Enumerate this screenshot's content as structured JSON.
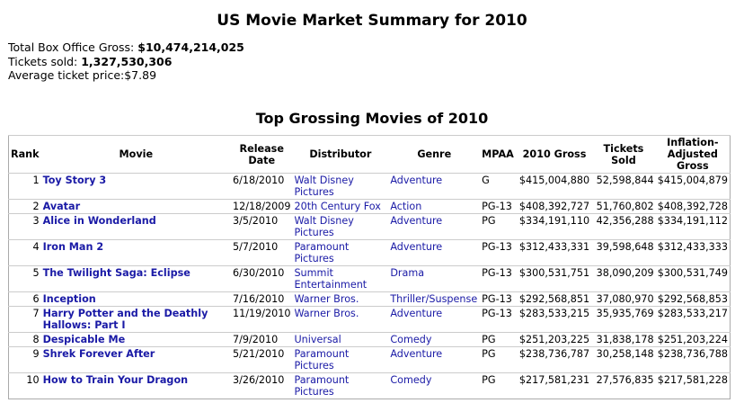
{
  "header": {
    "title": "US Movie Market Summary for 2010"
  },
  "summary": [
    {
      "label": "Total Box Office Gross:",
      "value": "$10,474,214,025"
    },
    {
      "label": "Tickets sold:",
      "value": "1,327,530,306"
    },
    {
      "label": "Average ticket price:",
      "value": "$7.89"
    }
  ],
  "table": {
    "title": "Top Grossing Movies of 2010",
    "columns": [
      "Rank",
      "Movie",
      "Release Date",
      "Distributor",
      "Genre",
      "MPAA",
      "2010 Gross",
      "Tickets Sold",
      "Inflation-Adjusted Gross"
    ],
    "rows": [
      [
        "1",
        "Toy Story 3",
        "6/18/2010",
        "Walt Disney Pictures",
        "Adventure",
        "G",
        "$415,004,880",
        "52,598,844",
        "$415,004,879"
      ],
      [
        "2",
        "Avatar",
        "12/18/2009",
        "20th Century Fox",
        "Action",
        "PG-13",
        "$408,392,727",
        "51,760,802",
        "$408,392,728"
      ],
      [
        "3",
        "Alice in Wonderland",
        "3/5/2010",
        "Walt Disney Pictures",
        "Adventure",
        "PG",
        "$334,191,110",
        "42,356,288",
        "$334,191,112"
      ],
      [
        "4",
        "Iron Man 2",
        "5/7/2010",
        "Paramount Pictures",
        "Adventure",
        "PG-13",
        "$312,433,331",
        "39,598,648",
        "$312,433,333"
      ],
      [
        "5",
        "The Twilight Saga: Eclipse",
        "6/30/2010",
        "Summit Entertainment",
        "Drama",
        "PG-13",
        "$300,531,751",
        "38,090,209",
        "$300,531,749"
      ],
      [
        "6",
        "Inception",
        "7/16/2010",
        "Warner Bros.",
        "Thriller/Suspense",
        "PG-13",
        "$292,568,851",
        "37,080,970",
        "$292,568,853"
      ],
      [
        "7",
        "Harry Potter and the Deathly Hallows: Part I",
        "11/19/2010",
        "Warner Bros.",
        "Adventure",
        "PG-13",
        "$283,533,215",
        "35,935,769",
        "$283,533,217"
      ],
      [
        "8",
        "Despicable Me",
        "7/9/2010",
        "Universal",
        "Comedy",
        "PG",
        "$251,203,225",
        "31,838,178",
        "$251,203,224"
      ],
      [
        "9",
        "Shrek Forever After",
        "5/21/2010",
        "Paramount Pictures",
        "Adventure",
        "PG",
        "$238,736,787",
        "30,258,148",
        "$238,736,788"
      ],
      [
        "10",
        "How to Train Your Dragon",
        "3/26/2010",
        "Paramount Pictures",
        "Comedy",
        "PG",
        "$217,581,231",
        "27,576,835",
        "$217,581,228"
      ]
    ]
  }
}
